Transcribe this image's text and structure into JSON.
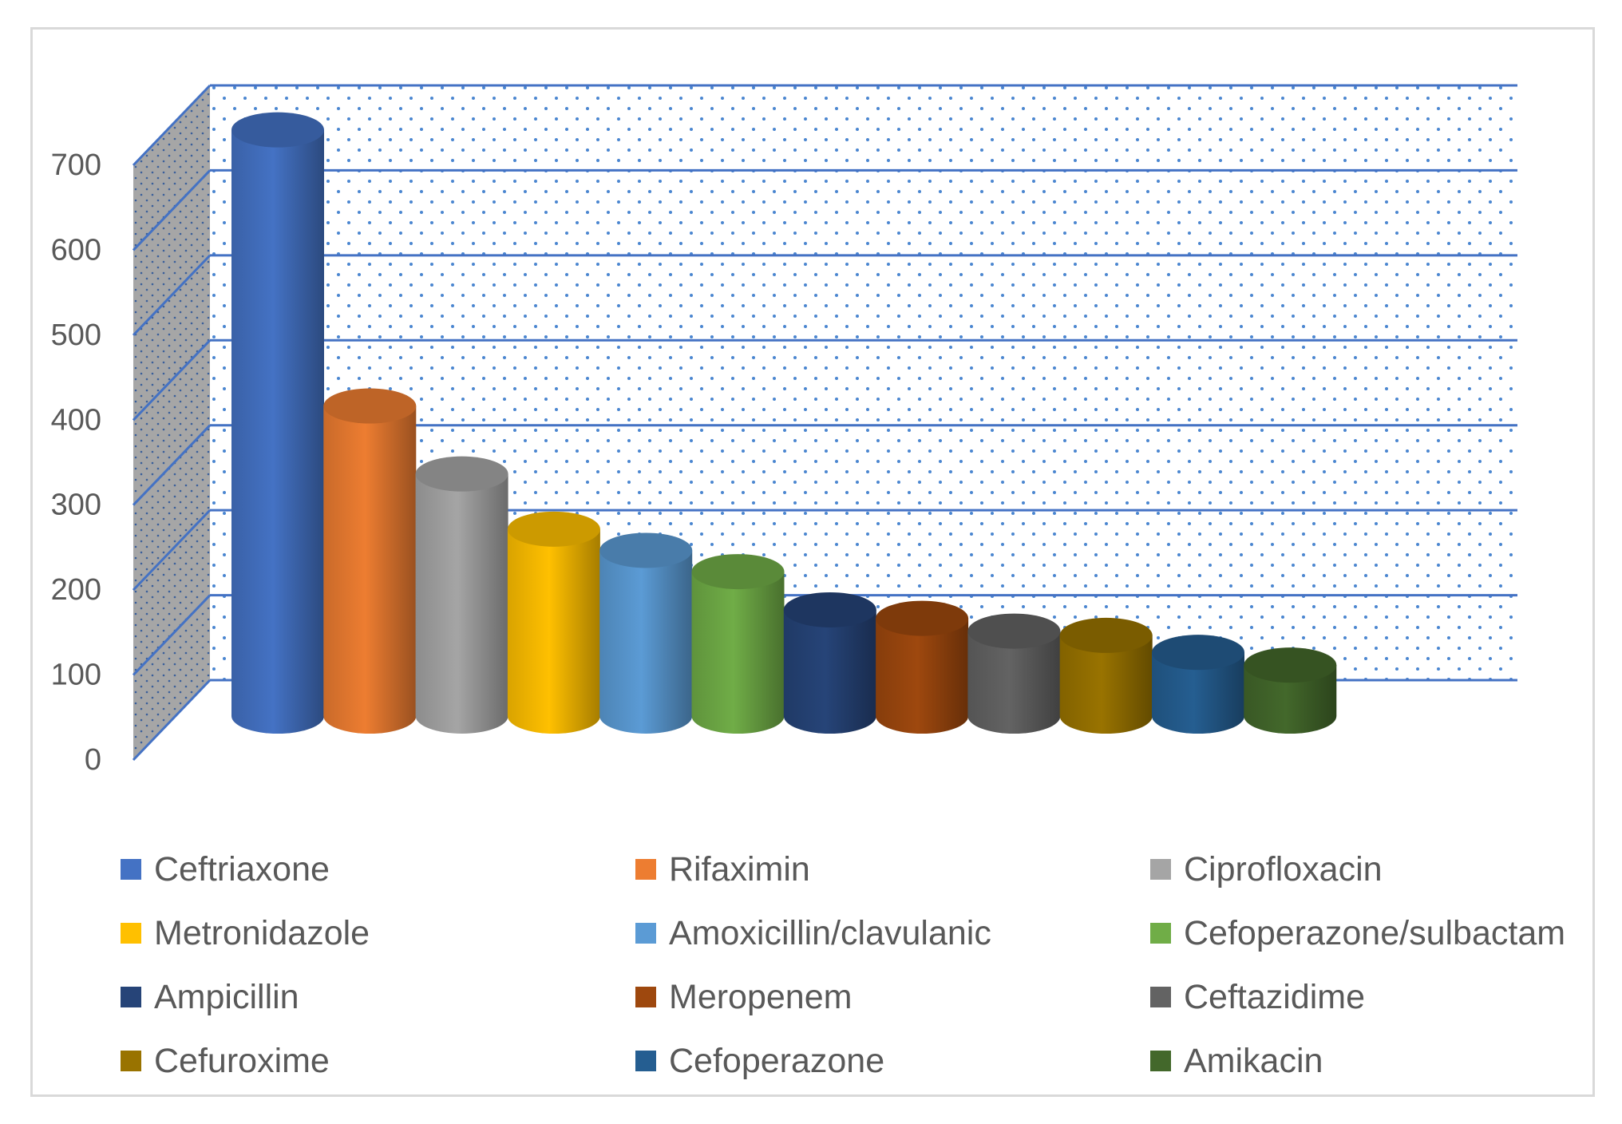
{
  "chart_data": {
    "type": "bar",
    "style": "3d-cylinder",
    "title": "",
    "xlabel": "",
    "ylabel": "",
    "ylim": [
      0,
      700
    ],
    "yticks": [
      0,
      100,
      200,
      300,
      400,
      500,
      600,
      700
    ],
    "grid": true,
    "legend_position": "bottom",
    "categories": [
      "Ceftriaxone",
      "Rifaximin",
      "Ciprofloxacin",
      "Metronidazole",
      "Amoxicillin/clavulanic",
      "Cefoperazone/sulbactam",
      "Ampicillin",
      "Meropenem",
      "Ceftazidime",
      "Cefuroxime",
      "Cefoperazone",
      "Amikacin"
    ],
    "values": [
      690,
      365,
      285,
      220,
      195,
      170,
      125,
      115,
      100,
      95,
      75,
      60
    ],
    "colors": [
      "#4472c4",
      "#ed7d31",
      "#a5a5a5",
      "#ffc000",
      "#5b9bd5",
      "#70ad47",
      "#264478",
      "#9e480e",
      "#636363",
      "#997300",
      "#255e91",
      "#43682b"
    ]
  }
}
